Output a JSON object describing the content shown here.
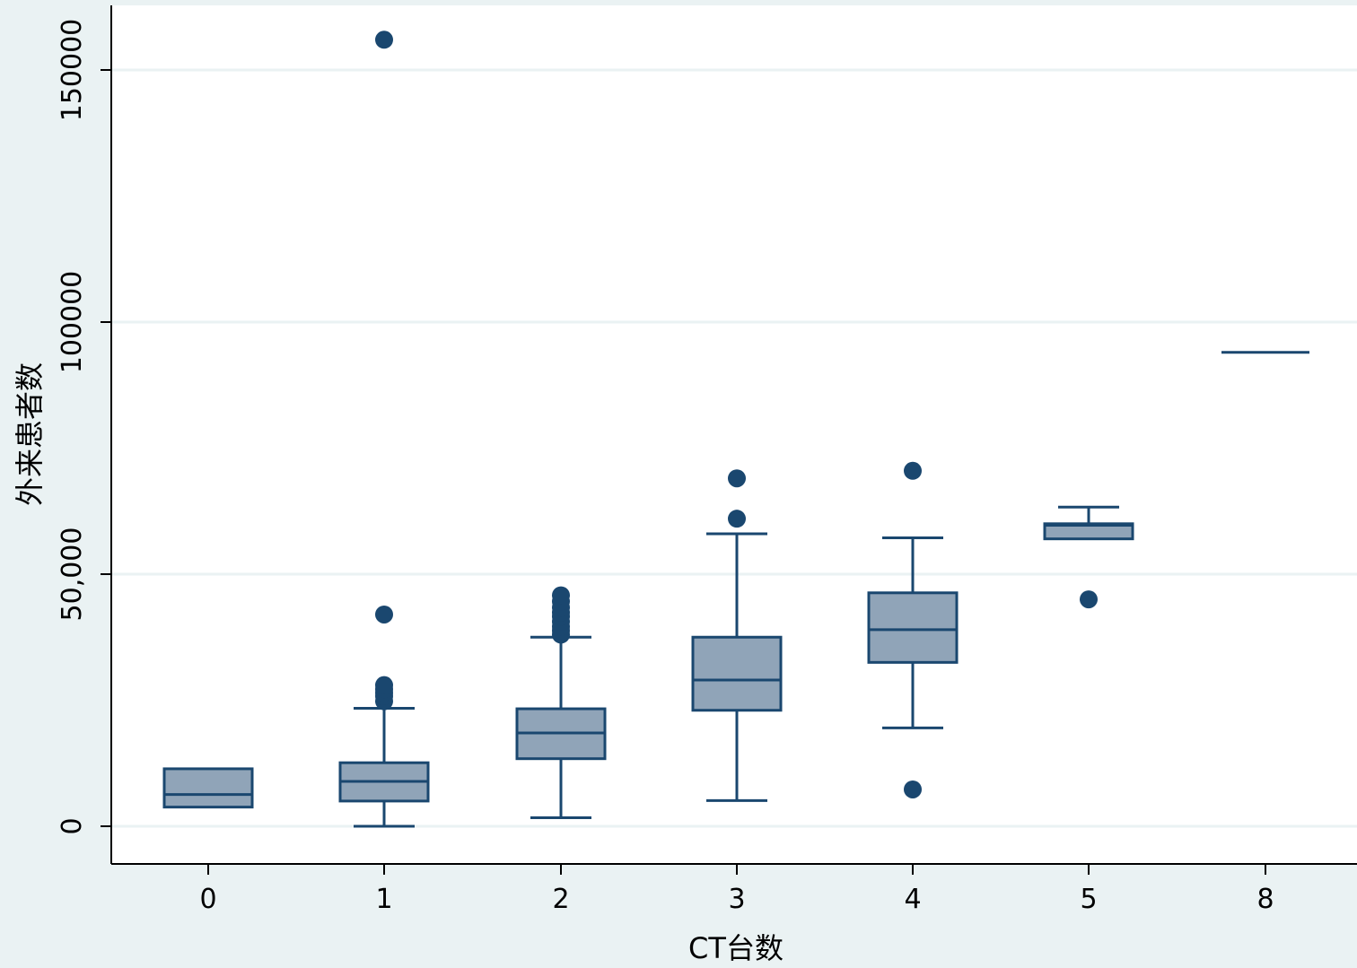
{
  "colors": {
    "background": "#eaf2f3",
    "plot_background": "#ffffff",
    "box_fill": "#90a4b8",
    "box_stroke": "#1a476f",
    "outlier": "#1a476f",
    "gridline": "#eaf2f3",
    "axis": "#000000"
  },
  "chart_data": {
    "type": "box",
    "title": "",
    "xlabel": "CT台数",
    "ylabel": "外来患者数",
    "ylim": [
      -7500,
      162000
    ],
    "grid": true,
    "y_ticks": [
      {
        "value": 0,
        "label": "0"
      },
      {
        "value": 50000,
        "label": "50,000"
      },
      {
        "value": 100000,
        "label": "100000"
      },
      {
        "value": 150000,
        "label": "150000"
      }
    ],
    "categories": [
      "0",
      "1",
      "2",
      "3",
      "4",
      "5",
      "8"
    ],
    "boxes": [
      {
        "category": "0",
        "whisker_low": 3800,
        "q1": 3800,
        "median": 6300,
        "q3": 11400,
        "whisker_high": 11400,
        "outliers": []
      },
      {
        "category": "1",
        "whisker_low": 0,
        "q1": 5000,
        "median": 8900,
        "q3": 12600,
        "whisker_high": 23400,
        "outliers": [
          24800,
          25800,
          26500,
          27200,
          28000,
          42000,
          156000
        ]
      },
      {
        "category": "2",
        "whisker_low": 1700,
        "q1": 13400,
        "median": 18500,
        "q3": 23300,
        "whisker_high": 37500,
        "outliers": [
          38000,
          38800,
          39600,
          40600,
          41600,
          42400,
          43400,
          44600,
          45800
        ]
      },
      {
        "category": "3",
        "whisker_low": 5100,
        "q1": 23000,
        "median": 29000,
        "q3": 37500,
        "whisker_high": 58000,
        "outliers": [
          61000,
          69000
        ]
      },
      {
        "category": "4",
        "whisker_low": 19500,
        "q1": 32500,
        "median": 39000,
        "q3": 46300,
        "whisker_high": 57200,
        "outliers": [
          7300,
          70500
        ]
      },
      {
        "category": "5",
        "whisker_low": 57000,
        "q1": 57000,
        "median": 59700,
        "q3": 60000,
        "whisker_high": 63300,
        "outliers": [
          45000
        ]
      },
      {
        "category": "8",
        "whisker_low": 94000,
        "q1": 94000,
        "median": 94000,
        "q3": 94000,
        "whisker_high": 94000,
        "outliers": []
      }
    ]
  }
}
